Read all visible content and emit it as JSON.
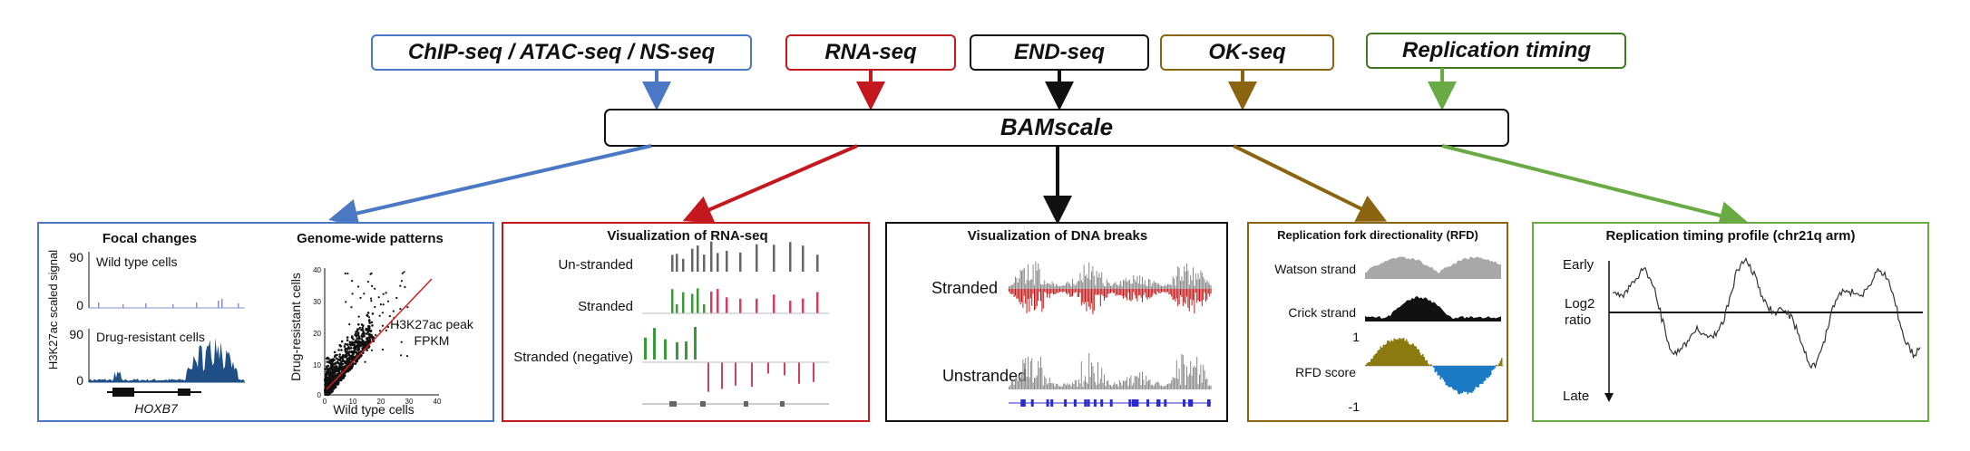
{
  "inputs": [
    {
      "label": "ChIP-seq / ATAC-seq / NS-seq",
      "color": "#4a78c4"
    },
    {
      "label": "RNA-seq",
      "color": "#c4181f"
    },
    {
      "label": "END-seq",
      "color": "#111111"
    },
    {
      "label": "OK-seq",
      "color": "#8a6410"
    },
    {
      "label": "Replication timing",
      "color": "#3e7a1e"
    }
  ],
  "center": {
    "label": "BAMscale"
  },
  "panel_chip": {
    "focal_title": "Focal changes",
    "genome_title": "Genome-wide patterns",
    "ylabel": "H3K27ac scaled signal",
    "wt_label": "Wild type cells",
    "dr_label": "Drug-resistant cells",
    "tick_90_a": "90",
    "tick_0_a": "0",
    "tick_90_b": "90",
    "tick_0_b": "0",
    "gene": "HOXB7",
    "scatter_ylabel": "Drug-resistant cells",
    "scatter_xlabel": "Wild type cells",
    "scatter_note_1": "H3K27ac peak",
    "scatter_note_2": "FPKM",
    "yticks": [
      "40",
      "30",
      "20",
      "10",
      "0"
    ],
    "xticks": [
      "0",
      "10",
      "20",
      "30",
      "40"
    ],
    "colors": {
      "wt": "#8a8fd0",
      "dr": "#1f4f86",
      "fit": "#d11f1f"
    }
  },
  "panel_rna": {
    "title": "Visualization of RNA-seq",
    "rows": [
      "Un-stranded",
      "Stranded",
      "Stranded (negative)"
    ],
    "colors": {
      "plus": "#3a9a3a",
      "minus": "#d04060",
      "un": "#666666"
    }
  },
  "panel_end": {
    "title": "Visualization of DNA breaks",
    "rows": [
      "Stranded",
      "Unstranded"
    ],
    "colors": {
      "plus": "#888888",
      "minus": "#c01818"
    }
  },
  "panel_ok": {
    "title": "Replication fork directionality (RFD)",
    "rows": [
      "Watson strand",
      "Crick strand",
      "RFD score"
    ],
    "tick_pos": "1",
    "tick_neg": "-1",
    "colors": {
      "watson": "#a8a8a8",
      "crick": "#111111",
      "pos": "#8a7a10",
      "neg": "#1a7bc4"
    }
  },
  "panel_rt": {
    "title": "Replication timing profile (chr21q arm)",
    "early": "Early",
    "ylabel_1": "Log2",
    "ylabel_2": "ratio",
    "late": "Late"
  }
}
